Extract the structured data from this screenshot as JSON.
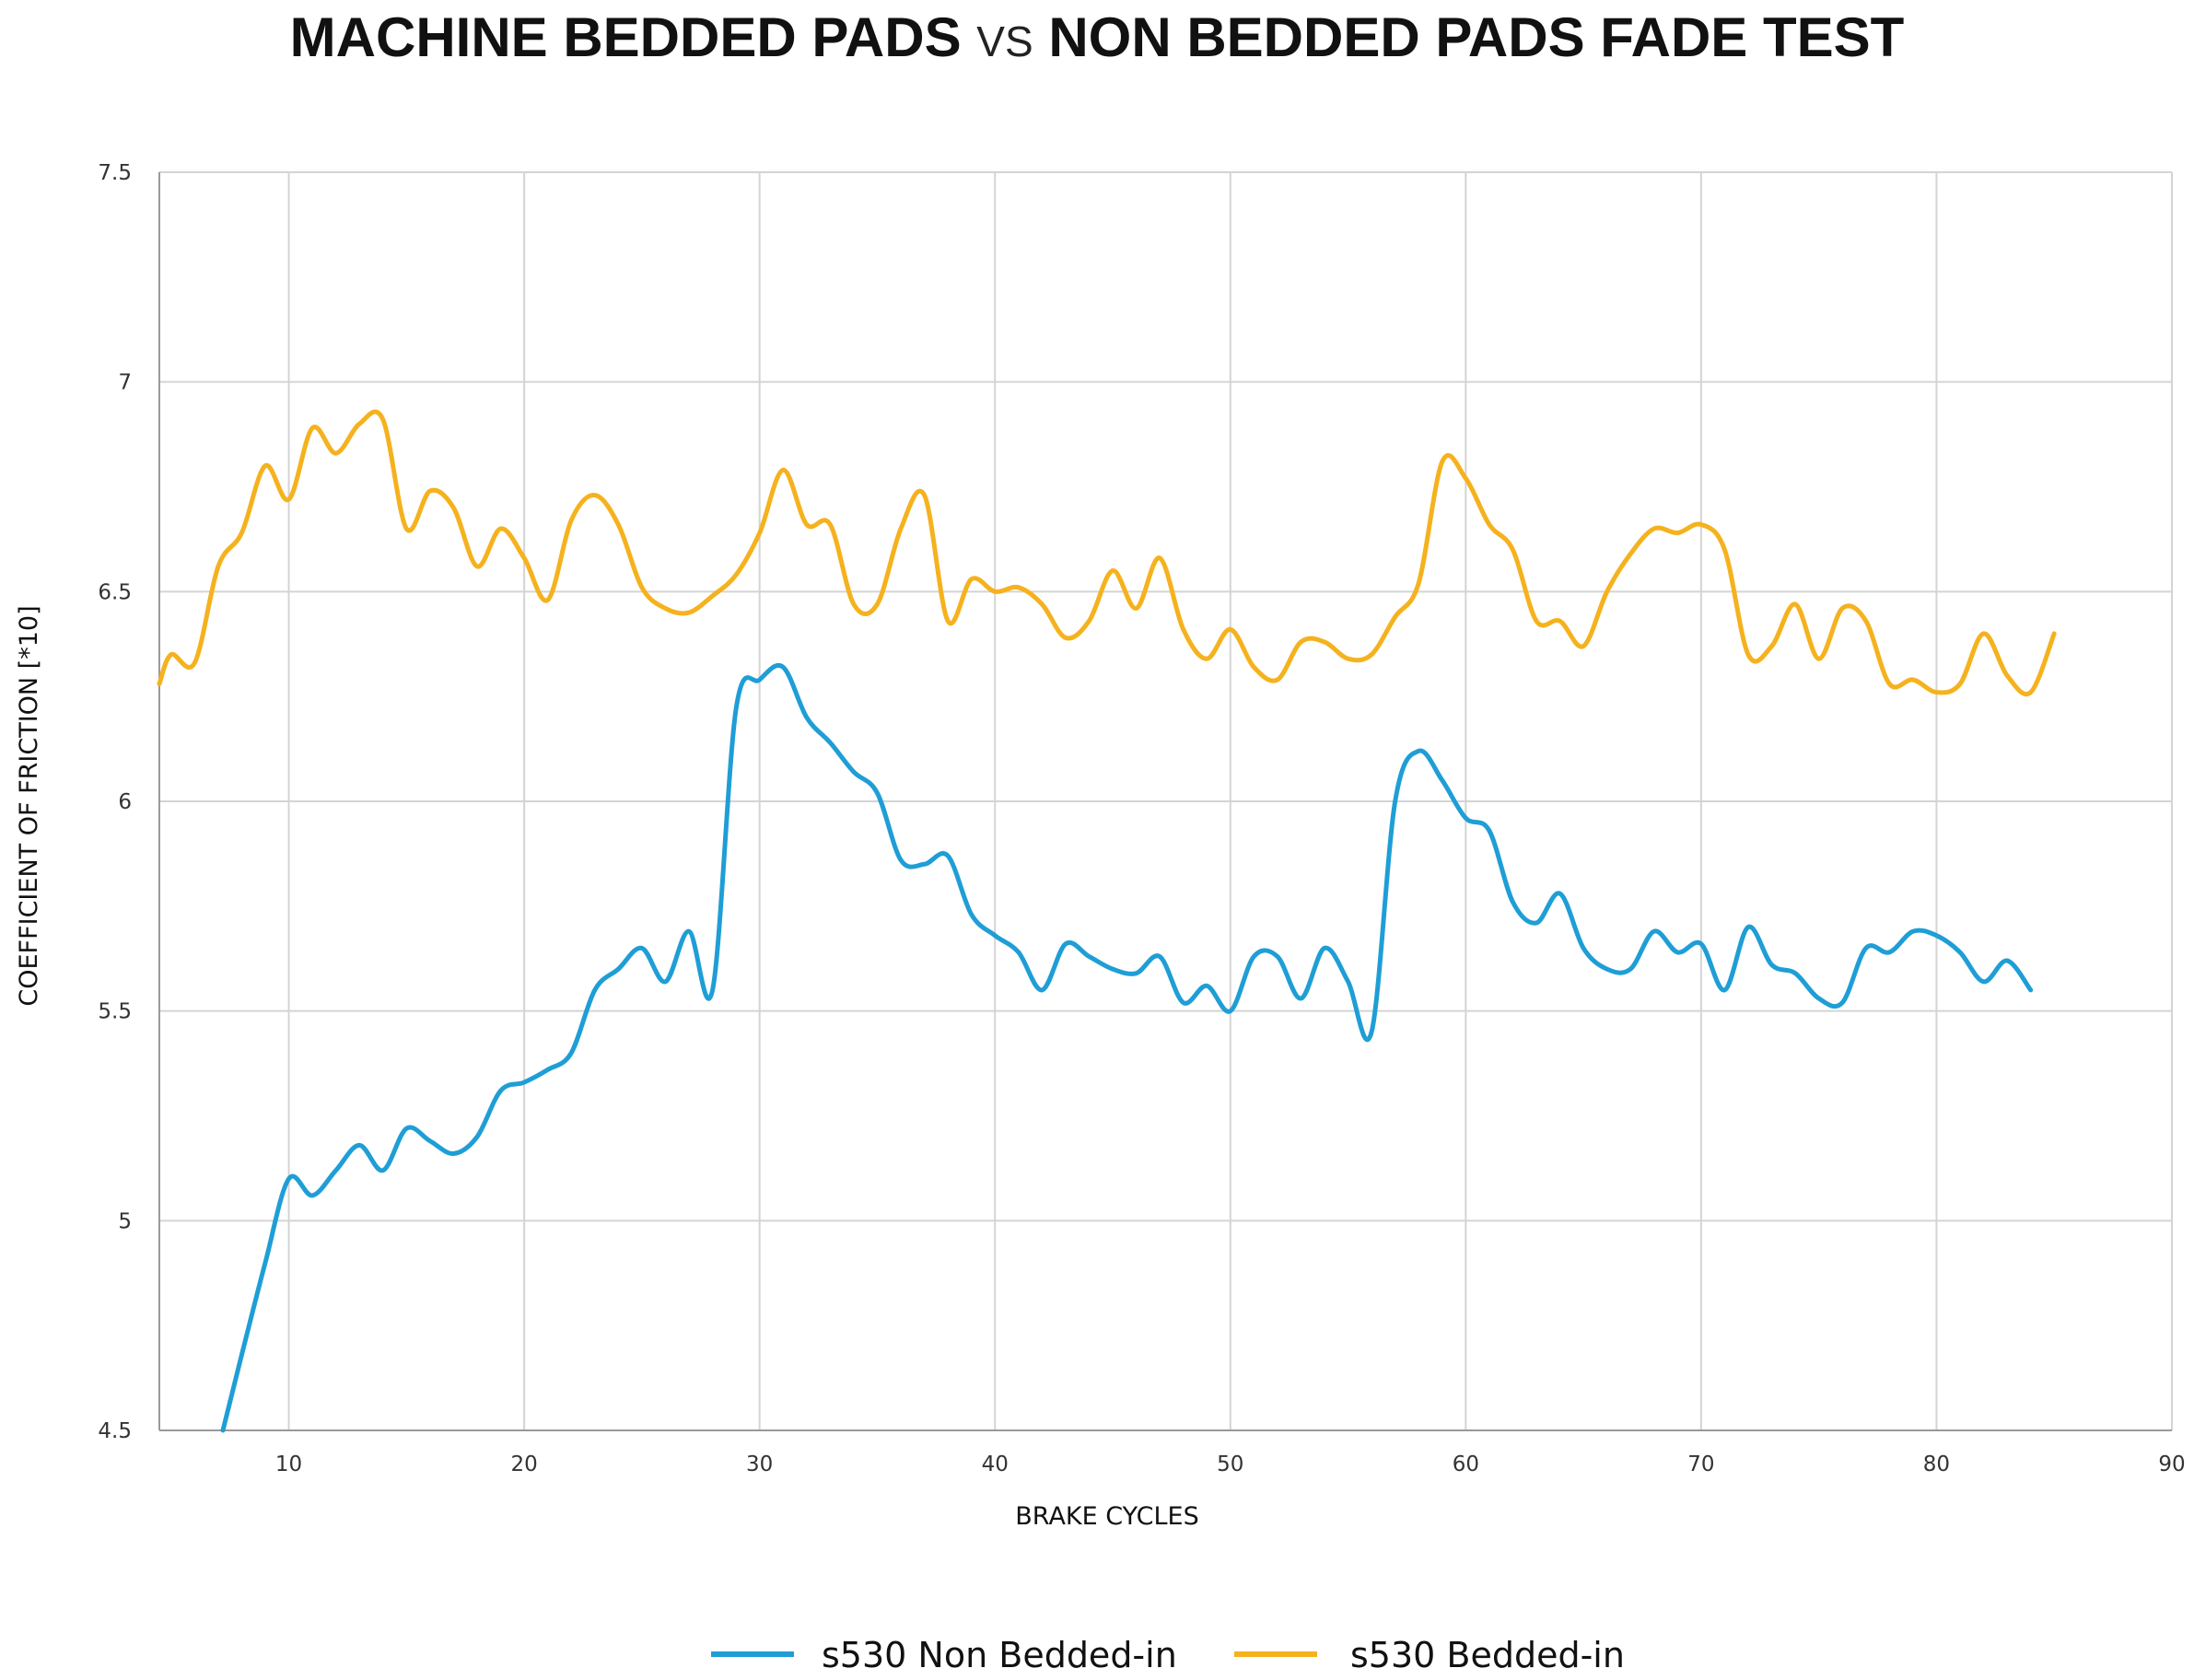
{
  "chart_data": {
    "type": "line",
    "title_part1": "MACHINE BEDDED PADS",
    "title_vs": "VS",
    "title_part2": "NON BEDDED PADS FADE TEST",
    "xlabel": "BRAKE CYCLES",
    "ylabel": "COEFFICIENT OF FRICTION [*10]",
    "xlim": [
      4.5,
      90
    ],
    "ylim": [
      4.5,
      7.5
    ],
    "xticks": [
      10,
      20,
      30,
      40,
      50,
      60,
      70,
      80,
      90
    ],
    "yticks": [
      "4.5",
      "5",
      "5.5",
      "6",
      "6.5",
      "7",
      "7.5"
    ],
    "grid": true,
    "legend_position": "bottom",
    "series": [
      {
        "name": "s530 Non Bedded-in",
        "color": "#1f9ed6",
        "points": [
          [
            7.2,
            4.5
          ],
          [
            8,
            4.68
          ],
          [
            9,
            4.9
          ],
          [
            10,
            5.1
          ],
          [
            11,
            5.06
          ],
          [
            12,
            5.12
          ],
          [
            13,
            5.18
          ],
          [
            14,
            5.12
          ],
          [
            15,
            5.22
          ],
          [
            16,
            5.19
          ],
          [
            17,
            5.16
          ],
          [
            18,
            5.2
          ],
          [
            19,
            5.31
          ],
          [
            20,
            5.33
          ],
          [
            21,
            5.36
          ],
          [
            22,
            5.4
          ],
          [
            23,
            5.55
          ],
          [
            24,
            5.6
          ],
          [
            25,
            5.65
          ],
          [
            26,
            5.57
          ],
          [
            27,
            5.69
          ],
          [
            28,
            5.55
          ],
          [
            29,
            6.22
          ],
          [
            30,
            6.29
          ],
          [
            31,
            6.32
          ],
          [
            32,
            6.2
          ],
          [
            33,
            6.14
          ],
          [
            34,
            6.07
          ],
          [
            35,
            6.02
          ],
          [
            36,
            5.86
          ],
          [
            37,
            5.85
          ],
          [
            38,
            5.87
          ],
          [
            39,
            5.73
          ],
          [
            40,
            5.68
          ],
          [
            41,
            5.64
          ],
          [
            42,
            5.55
          ],
          [
            43,
            5.66
          ],
          [
            44,
            5.63
          ],
          [
            45,
            5.6
          ],
          [
            46,
            5.59
          ],
          [
            47,
            5.63
          ],
          [
            48,
            5.52
          ],
          [
            49,
            5.56
          ],
          [
            50,
            5.5
          ],
          [
            51,
            5.63
          ],
          [
            52,
            5.63
          ],
          [
            53,
            5.53
          ],
          [
            54,
            5.65
          ],
          [
            55,
            5.57
          ],
          [
            56,
            5.45
          ],
          [
            57,
            6.0
          ],
          [
            58,
            6.12
          ],
          [
            59,
            6.05
          ],
          [
            60,
            5.96
          ],
          [
            61,
            5.93
          ],
          [
            62,
            5.76
          ],
          [
            63,
            5.71
          ],
          [
            64,
            5.78
          ],
          [
            65,
            5.65
          ],
          [
            66,
            5.6
          ],
          [
            67,
            5.6
          ],
          [
            68,
            5.69
          ],
          [
            69,
            5.64
          ],
          [
            70,
            5.66
          ],
          [
            71,
            5.55
          ],
          [
            72,
            5.7
          ],
          [
            73,
            5.61
          ],
          [
            74,
            5.59
          ],
          [
            75,
            5.53
          ],
          [
            76,
            5.52
          ],
          [
            77,
            5.65
          ],
          [
            78,
            5.64
          ],
          [
            79,
            5.69
          ],
          [
            80,
            5.68
          ],
          [
            81,
            5.64
          ],
          [
            82,
            5.57
          ],
          [
            83,
            5.62
          ],
          [
            84,
            5.55
          ]
        ]
      },
      {
        "name": "s530 Bedded-in",
        "color": "#f5b21e",
        "points": [
          [
            4.5,
            6.28
          ],
          [
            5,
            6.35
          ],
          [
            6,
            6.33
          ],
          [
            7,
            6.56
          ],
          [
            8,
            6.64
          ],
          [
            9,
            6.8
          ],
          [
            10,
            6.72
          ],
          [
            11,
            6.89
          ],
          [
            12,
            6.83
          ],
          [
            13,
            6.9
          ],
          [
            14,
            6.91
          ],
          [
            15,
            6.65
          ],
          [
            16,
            6.74
          ],
          [
            17,
            6.7
          ],
          [
            18,
            6.56
          ],
          [
            19,
            6.65
          ],
          [
            20,
            6.58
          ],
          [
            21,
            6.48
          ],
          [
            22,
            6.67
          ],
          [
            23,
            6.73
          ],
          [
            24,
            6.66
          ],
          [
            25,
            6.51
          ],
          [
            26,
            6.46
          ],
          [
            27,
            6.45
          ],
          [
            28,
            6.49
          ],
          [
            29,
            6.54
          ],
          [
            30,
            6.64
          ],
          [
            31,
            6.79
          ],
          [
            32,
            6.66
          ],
          [
            33,
            6.66
          ],
          [
            34,
            6.47
          ],
          [
            35,
            6.47
          ],
          [
            36,
            6.65
          ],
          [
            37,
            6.73
          ],
          [
            38,
            6.43
          ],
          [
            39,
            6.53
          ],
          [
            40,
            6.5
          ],
          [
            41,
            6.51
          ],
          [
            42,
            6.47
          ],
          [
            43,
            6.39
          ],
          [
            44,
            6.43
          ],
          [
            45,
            6.55
          ],
          [
            46,
            6.46
          ],
          [
            47,
            6.58
          ],
          [
            48,
            6.41
          ],
          [
            49,
            6.34
          ],
          [
            50,
            6.41
          ],
          [
            51,
            6.32
          ],
          [
            52,
            6.29
          ],
          [
            53,
            6.38
          ],
          [
            54,
            6.38
          ],
          [
            55,
            6.34
          ],
          [
            56,
            6.35
          ],
          [
            57,
            6.44
          ],
          [
            58,
            6.52
          ],
          [
            59,
            6.81
          ],
          [
            60,
            6.77
          ],
          [
            61,
            6.66
          ],
          [
            62,
            6.6
          ],
          [
            63,
            6.43
          ],
          [
            64,
            6.43
          ],
          [
            65,
            6.37
          ],
          [
            66,
            6.5
          ],
          [
            67,
            6.59
          ],
          [
            68,
            6.65
          ],
          [
            69,
            6.64
          ],
          [
            70,
            6.66
          ],
          [
            71,
            6.6
          ],
          [
            72,
            6.35
          ],
          [
            73,
            6.37
          ],
          [
            74,
            6.47
          ],
          [
            75,
            6.34
          ],
          [
            76,
            6.46
          ],
          [
            77,
            6.43
          ],
          [
            78,
            6.28
          ],
          [
            79,
            6.29
          ],
          [
            80,
            6.26
          ],
          [
            81,
            6.28
          ],
          [
            82,
            6.4
          ],
          [
            83,
            6.3
          ],
          [
            84,
            6.26
          ],
          [
            85,
            6.4
          ]
        ]
      }
    ]
  }
}
